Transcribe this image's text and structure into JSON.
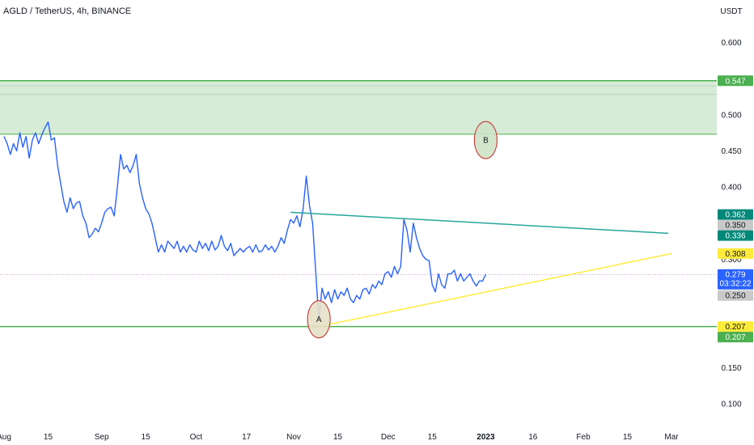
{
  "header": {
    "symbol_title": "AGLD / TetherUS, 4h, BINANCE"
  },
  "chart_data": {
    "type": "line",
    "title": "AGLD / TetherUS, 4h, BINANCE",
    "currency": "USDT",
    "y_axis_position": "right",
    "y_ticks": [
      0.1,
      0.15,
      0.2,
      0.25,
      0.3,
      0.35,
      0.4,
      0.45,
      0.5,
      0.55,
      0.6
    ],
    "y_tick_labels": [
      "0.100",
      "0.150",
      "0.200",
      "0.250",
      "0.300",
      "0.350",
      "0.400",
      "0.450",
      "0.500",
      "0.550",
      "0.600"
    ],
    "ylim": [
      0.0655,
      0.6587
    ],
    "xlim": [
      "2022-08-01",
      "2023-03-01"
    ],
    "x_ticks": [
      {
        "date": "2022-08-01",
        "label": "Aug"
      },
      {
        "date": "2022-08-15",
        "label": "15"
      },
      {
        "date": "2022-09-01",
        "label": "Sep"
      },
      {
        "date": "2022-09-15",
        "label": "15"
      },
      {
        "date": "2022-10-01",
        "label": "Oct"
      },
      {
        "date": "2022-10-17",
        "label": "17"
      },
      {
        "date": "2022-11-01",
        "label": "Nov"
      },
      {
        "date": "2022-11-15",
        "label": "15"
      },
      {
        "date": "2022-12-01",
        "label": "Dec"
      },
      {
        "date": "2022-12-15",
        "label": "15"
      },
      {
        "date": "2023-01-01",
        "label": "2023"
      },
      {
        "date": "2023-01-16",
        "label": "16"
      },
      {
        "date": "2023-02-01",
        "label": "Feb"
      },
      {
        "date": "2023-02-15",
        "label": "15"
      },
      {
        "date": "2023-03-01",
        "label": "Mar"
      }
    ],
    "series": [
      {
        "color": "#2962ff",
        "points": [
          [
            "2022-08-01",
            0.47
          ],
          [
            "2022-08-02",
            0.46
          ],
          [
            "2022-08-03",
            0.445
          ],
          [
            "2022-08-04",
            0.46
          ],
          [
            "2022-08-05",
            0.45
          ],
          [
            "2022-08-06",
            0.475
          ],
          [
            "2022-08-07",
            0.455
          ],
          [
            "2022-08-08",
            0.47
          ],
          [
            "2022-08-09",
            0.44
          ],
          [
            "2022-08-10",
            0.465
          ],
          [
            "2022-08-11",
            0.475
          ],
          [
            "2022-08-12",
            0.46
          ],
          [
            "2022-08-13",
            0.472
          ],
          [
            "2022-08-14",
            0.482
          ],
          [
            "2022-08-15",
            0.49
          ],
          [
            "2022-08-16",
            0.465
          ],
          [
            "2022-08-17",
            0.468
          ],
          [
            "2022-08-18",
            0.43
          ],
          [
            "2022-08-19",
            0.405
          ],
          [
            "2022-08-20",
            0.38
          ],
          [
            "2022-08-21",
            0.365
          ],
          [
            "2022-08-22",
            0.385
          ],
          [
            "2022-08-23",
            0.37
          ],
          [
            "2022-08-24",
            0.378
          ],
          [
            "2022-08-25",
            0.38
          ],
          [
            "2022-08-26",
            0.36
          ],
          [
            "2022-08-27",
            0.35
          ],
          [
            "2022-08-28",
            0.33
          ],
          [
            "2022-08-29",
            0.335
          ],
          [
            "2022-08-30",
            0.343
          ],
          [
            "2022-08-31",
            0.338
          ],
          [
            "2022-09-01",
            0.35
          ],
          [
            "2022-09-02",
            0.365
          ],
          [
            "2022-09-03",
            0.37
          ],
          [
            "2022-09-04",
            0.372
          ],
          [
            "2022-09-05",
            0.36
          ],
          [
            "2022-09-06",
            0.4
          ],
          [
            "2022-09-07",
            0.445
          ],
          [
            "2022-09-08",
            0.425
          ],
          [
            "2022-09-09",
            0.43
          ],
          [
            "2022-09-10",
            0.42
          ],
          [
            "2022-09-11",
            0.43
          ],
          [
            "2022-09-12",
            0.445
          ],
          [
            "2022-09-13",
            0.405
          ],
          [
            "2022-09-14",
            0.385
          ],
          [
            "2022-09-15",
            0.37
          ],
          [
            "2022-09-16",
            0.363
          ],
          [
            "2022-09-17",
            0.35
          ],
          [
            "2022-09-18",
            0.33
          ],
          [
            "2022-09-19",
            0.31
          ],
          [
            "2022-09-20",
            0.32
          ],
          [
            "2022-09-21",
            0.31
          ],
          [
            "2022-09-22",
            0.325
          ],
          [
            "2022-09-23",
            0.32
          ],
          [
            "2022-09-24",
            0.315
          ],
          [
            "2022-09-25",
            0.325
          ],
          [
            "2022-09-26",
            0.31
          ],
          [
            "2022-09-27",
            0.318
          ],
          [
            "2022-09-28",
            0.31
          ],
          [
            "2022-09-29",
            0.32
          ],
          [
            "2022-09-30",
            0.313
          ],
          [
            "2022-10-01",
            0.31
          ],
          [
            "2022-10-02",
            0.325
          ],
          [
            "2022-10-03",
            0.315
          ],
          [
            "2022-10-04",
            0.322
          ],
          [
            "2022-10-05",
            0.312
          ],
          [
            "2022-10-06",
            0.325
          ],
          [
            "2022-10-07",
            0.313
          ],
          [
            "2022-10-08",
            0.318
          ],
          [
            "2022-10-09",
            0.333
          ],
          [
            "2022-10-10",
            0.318
          ],
          [
            "2022-10-11",
            0.312
          ],
          [
            "2022-10-12",
            0.322
          ],
          [
            "2022-10-13",
            0.305
          ],
          [
            "2022-10-14",
            0.31
          ],
          [
            "2022-10-15",
            0.315
          ],
          [
            "2022-10-16",
            0.31
          ],
          [
            "2022-10-17",
            0.315
          ],
          [
            "2022-10-18",
            0.318
          ],
          [
            "2022-10-19",
            0.31
          ],
          [
            "2022-10-20",
            0.32
          ],
          [
            "2022-10-21",
            0.31
          ],
          [
            "2022-10-22",
            0.312
          ],
          [
            "2022-10-23",
            0.32
          ],
          [
            "2022-10-24",
            0.313
          ],
          [
            "2022-10-25",
            0.318
          ],
          [
            "2022-10-26",
            0.31
          ],
          [
            "2022-10-27",
            0.318
          ],
          [
            "2022-10-28",
            0.33
          ],
          [
            "2022-10-29",
            0.322
          ],
          [
            "2022-10-30",
            0.34
          ],
          [
            "2022-10-31",
            0.355
          ],
          [
            "2022-11-01",
            0.35
          ],
          [
            "2022-11-02",
            0.36
          ],
          [
            "2022-11-03",
            0.345
          ],
          [
            "2022-11-04",
            0.37
          ],
          [
            "2022-11-05",
            0.415
          ],
          [
            "2022-11-06",
            0.375
          ],
          [
            "2022-11-07",
            0.35
          ],
          [
            "2022-11-08",
            0.282
          ],
          [
            "2022-11-09",
            0.215
          ],
          [
            "2022-11-10",
            0.26
          ],
          [
            "2022-11-11",
            0.245
          ],
          [
            "2022-11-12",
            0.255
          ],
          [
            "2022-11-13",
            0.24
          ],
          [
            "2022-11-14",
            0.258
          ],
          [
            "2022-11-15",
            0.245
          ],
          [
            "2022-11-16",
            0.255
          ],
          [
            "2022-11-17",
            0.25
          ],
          [
            "2022-11-18",
            0.26
          ],
          [
            "2022-11-19",
            0.245
          ],
          [
            "2022-11-20",
            0.24
          ],
          [
            "2022-11-21",
            0.25
          ],
          [
            "2022-11-22",
            0.245
          ],
          [
            "2022-11-23",
            0.258
          ],
          [
            "2022-11-24",
            0.26
          ],
          [
            "2022-11-25",
            0.252
          ],
          [
            "2022-11-26",
            0.265
          ],
          [
            "2022-11-27",
            0.26
          ],
          [
            "2022-11-28",
            0.27
          ],
          [
            "2022-11-29",
            0.265
          ],
          [
            "2022-11-30",
            0.28
          ],
          [
            "2022-12-01",
            0.283
          ],
          [
            "2022-12-02",
            0.275
          ],
          [
            "2022-12-03",
            0.29
          ],
          [
            "2022-12-04",
            0.28
          ],
          [
            "2022-12-05",
            0.29
          ],
          [
            "2022-12-06",
            0.355
          ],
          [
            "2022-12-07",
            0.34
          ],
          [
            "2022-12-08",
            0.31
          ],
          [
            "2022-12-09",
            0.35
          ],
          [
            "2022-12-10",
            0.33
          ],
          [
            "2022-12-11",
            0.315
          ],
          [
            "2022-12-12",
            0.305
          ],
          [
            "2022-12-13",
            0.3
          ],
          [
            "2022-12-14",
            0.298
          ],
          [
            "2022-12-15",
            0.265
          ],
          [
            "2022-12-16",
            0.255
          ],
          [
            "2022-12-17",
            0.28
          ],
          [
            "2022-12-18",
            0.265
          ],
          [
            "2022-12-19",
            0.26
          ],
          [
            "2022-12-20",
            0.28
          ],
          [
            "2022-12-21",
            0.28
          ],
          [
            "2022-12-22",
            0.285
          ],
          [
            "2022-12-23",
            0.27
          ],
          [
            "2022-12-24",
            0.28
          ],
          [
            "2022-12-25",
            0.27
          ],
          [
            "2022-12-26",
            0.275
          ],
          [
            "2022-12-27",
            0.28
          ],
          [
            "2022-12-28",
            0.27
          ],
          [
            "2022-12-29",
            0.263
          ],
          [
            "2022-12-30",
            0.27
          ],
          [
            "2022-12-31",
            0.27
          ],
          [
            "2023-01-01",
            0.279
          ]
        ]
      }
    ],
    "price_labels": [
      {
        "text": "0.547",
        "value": 0.547,
        "color": "#4caf50"
      },
      {
        "text": "0.362",
        "value": 0.362,
        "color": "#00897b"
      },
      {
        "text": "0.350",
        "value": 0.35,
        "color": "#c9c9c9"
      },
      {
        "text": "0.336",
        "value": 0.336,
        "color": "#00897b"
      },
      {
        "text": "0.308",
        "value": 0.308,
        "color": "#ffeb3b"
      },
      {
        "text": "0.279",
        "value": 0.279,
        "color": "#2962ff",
        "countdown": "03:32:22"
      },
      {
        "text": "0.250",
        "value": 0.25,
        "color": "#c9c9c9"
      },
      {
        "text": "0.207",
        "value": 0.207,
        "color": "#ffeb3b"
      },
      {
        "text": "0.207",
        "value": 0.207,
        "color": "#4caf50"
      }
    ],
    "zone": {
      "value_top": 0.547,
      "value_bottom": 0.473,
      "inner_lines": [
        0.54,
        0.528
      ],
      "fill": "#c8e6c9",
      "line_color": "#4caf50"
    },
    "support_line": {
      "value": 0.207,
      "color": "#4caf50"
    },
    "current_price_line": {
      "value": 0.279,
      "color": "#9c27b0"
    },
    "trend_lines": [
      {
        "color": "#26a69a",
        "from": [
          "2022-10-31",
          0.365
        ],
        "to": [
          "2023-02-28",
          0.336
        ]
      },
      {
        "color": "#ffeb3b",
        "from": [
          "2022-11-09",
          0.207
        ],
        "to": [
          "2023-03-01",
          0.308
        ]
      }
    ],
    "annotations": [
      {
        "text": "A",
        "date": "2022-11-09",
        "value": 0.217,
        "stroke": "#c62828",
        "fill": "#e6e0c6"
      },
      {
        "text": "B",
        "date": "2023-01-01",
        "value": 0.465,
        "stroke": "#c62828",
        "fill": "#cde3c6"
      }
    ]
  }
}
